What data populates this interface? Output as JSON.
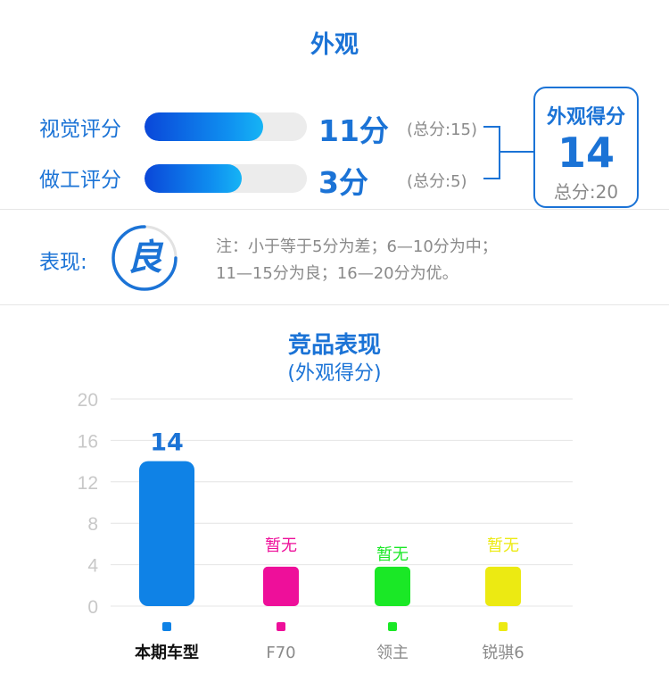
{
  "header": {
    "title": "外观"
  },
  "scores": [
    {
      "label": "视觉评分",
      "value": "11分",
      "total": "(总分:15)",
      "fraction": 0.7333
    },
    {
      "label": "做工评分",
      "value": "3分",
      "total": "(总分:5)",
      "fraction": 0.6
    }
  ],
  "total_box": {
    "title": "外观得分",
    "value": "14",
    "sub": "总分:20"
  },
  "performance": {
    "label": "表现:",
    "grade": "良",
    "note_line1": "注：小于等于5分为差；6—10分为中；",
    "note_line2": "11—15分为良；16—20分为优。"
  },
  "chart_data": {
    "type": "bar",
    "title": "竞品表现",
    "subtitle": "(外观得分)",
    "categories": [
      "本期车型",
      "F70",
      "领主",
      "锐骐6"
    ],
    "values": [
      14,
      null,
      null,
      null
    ],
    "data_labels": [
      "14",
      "暂无",
      "暂无",
      "暂无"
    ],
    "placeholder_value": 3.8,
    "colors": [
      "#0f82e6",
      "#ee0f9a",
      "#1ae826",
      "#ecea12"
    ],
    "ylim": [
      0,
      20
    ],
    "yticks": [
      0,
      4,
      8,
      12,
      16,
      20
    ],
    "grid": true
  }
}
